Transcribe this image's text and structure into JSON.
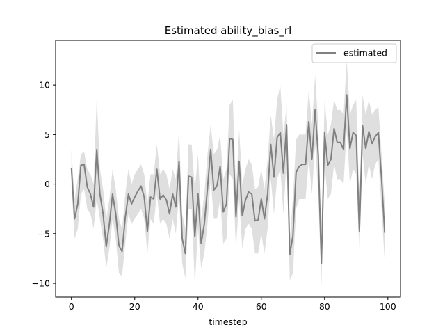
{
  "chart_data": {
    "type": "line",
    "title": "Estimated ability_bias_rl",
    "xlabel": "timestep",
    "ylabel": "",
    "xlim": [
      -5,
      104
    ],
    "ylim": [
      -11.4,
      14.5
    ],
    "xticks": [
      0,
      20,
      40,
      60,
      80,
      100
    ],
    "yticks": [
      -10,
      -5,
      0,
      5,
      10
    ],
    "ytick_labels": [
      "−10",
      "−5",
      "0",
      "5",
      "10"
    ],
    "grid": false,
    "legend": {
      "position": "top-right",
      "entries": [
        "estimated"
      ]
    },
    "colors": {
      "line": "#808080",
      "band": "#d9d9d9"
    },
    "series": [
      {
        "name": "estimated",
        "x": [
          0,
          1,
          2,
          3,
          4,
          5,
          6,
          7,
          8,
          9,
          10,
          11,
          12,
          13,
          14,
          15,
          16,
          17,
          18,
          19,
          20,
          21,
          22,
          23,
          24,
          25,
          26,
          27,
          28,
          29,
          30,
          31,
          32,
          33,
          34,
          35,
          36,
          37,
          38,
          39,
          40,
          41,
          42,
          43,
          44,
          45,
          46,
          47,
          48,
          49,
          50,
          51,
          52,
          53,
          54,
          55,
          56,
          57,
          58,
          59,
          60,
          61,
          62,
          63,
          64,
          65,
          66,
          67,
          68,
          69,
          70,
          71,
          72,
          73,
          74,
          75,
          76,
          77,
          78,
          79,
          80,
          81,
          82,
          83,
          84,
          85,
          86,
          87,
          88,
          89,
          90,
          91,
          92,
          93,
          94,
          95,
          96,
          97,
          98,
          99
        ],
        "values": [
          1.6,
          -3.5,
          -2.0,
          1.9,
          2.0,
          -0.3,
          -1.0,
          -2.3,
          3.5,
          -1.0,
          -3.0,
          -6.3,
          -4.0,
          -1.0,
          -3.0,
          -6.2,
          -6.8,
          -3.4,
          -1.0,
          -2.0,
          -1.3,
          -0.7,
          -0.2,
          -1.3,
          -4.8,
          -1.3,
          -1.5,
          1.5,
          -1.5,
          -1.1,
          -1.6,
          -3.0,
          -1.0,
          -2.3,
          2.3,
          -5.5,
          -7.0,
          0.8,
          0.7,
          -5.3,
          -1.0,
          -6.0,
          -4.0,
          -0.4,
          3.5,
          -0.6,
          -0.2,
          1.8,
          -2.8,
          -2.0,
          4.6,
          4.5,
          -3.3,
          2.3,
          -3.2,
          -1.6,
          -0.8,
          -1.0,
          -3.7,
          -3.6,
          -1.5,
          -3.5,
          -1.0,
          4.0,
          0.7,
          4.7,
          5.2,
          1.1,
          6.0,
          -7.1,
          -5.2,
          1.2,
          1.8,
          2.0,
          2.0,
          6.3,
          2.5,
          7.5,
          2.9,
          -8.0,
          5.2,
          1.9,
          2.5,
          5.6,
          4.2,
          4.2,
          3.5,
          9.0,
          3.6,
          5.2,
          4.9,
          -4.8,
          5.9,
          3.6,
          5.3,
          4.1,
          4.8,
          5.2,
          0.6,
          -4.9
        ],
        "lower": [
          0.0,
          -5.5,
          -4.5,
          -1.0,
          -0.5,
          -2.5,
          -3.0,
          -4.5,
          -1.5,
          -3.5,
          -5.5,
          -8.5,
          -6.5,
          -3.5,
          -5.5,
          -9.0,
          -9.3,
          -6.0,
          -3.0,
          -4.0,
          -3.5,
          -3.0,
          -2.5,
          -3.5,
          -7.0,
          -3.5,
          -4.0,
          -1.0,
          -4.0,
          -3.5,
          -4.0,
          -5.5,
          -3.5,
          -5.0,
          -1.0,
          -8.0,
          -9.5,
          -2.5,
          -2.5,
          -10.2,
          -4.5,
          -8.5,
          -7.0,
          -4.0,
          0.5,
          -3.5,
          -3.5,
          -1.5,
          -6.0,
          -5.5,
          1.0,
          0.5,
          -6.5,
          -1.5,
          -6.5,
          -4.5,
          -4.0,
          -4.5,
          -7.0,
          -7.0,
          -5.0,
          -7.0,
          -4.5,
          0.5,
          -3.0,
          0.5,
          1.5,
          -3.0,
          2.5,
          -9.7,
          -9.0,
          -2.5,
          -1.5,
          -1.5,
          -1.5,
          2.5,
          -1.0,
          4.0,
          -1.0,
          -10.2,
          2.0,
          -1.5,
          -1.0,
          2.0,
          0.5,
          0.5,
          0.0,
          5.5,
          0.0,
          1.5,
          1.0,
          -7.0,
          3.0,
          0.0,
          2.0,
          0.5,
          2.0,
          2.5,
          -2.5,
          -7.8
        ],
        "upper": [
          3.5,
          -1.5,
          0.5,
          3.0,
          3.3,
          1.5,
          1.0,
          0.0,
          8.8,
          1.5,
          -0.5,
          -3.5,
          -1.5,
          1.5,
          -0.5,
          -3.5,
          -4.5,
          -1.0,
          1.5,
          0.0,
          1.0,
          1.5,
          2.0,
          1.0,
          -2.0,
          1.0,
          1.0,
          4.0,
          1.0,
          1.5,
          1.0,
          -0.5,
          1.5,
          0.5,
          5.5,
          -3.0,
          -4.5,
          4.0,
          4.0,
          -0.5,
          3.0,
          -3.5,
          -1.0,
          3.0,
          6.0,
          3.0,
          3.5,
          5.0,
          0.5,
          1.5,
          8.0,
          8.5,
          -0.5,
          5.5,
          0.0,
          1.5,
          2.5,
          2.0,
          -0.5,
          -0.3,
          1.5,
          -0.5,
          2.5,
          7.0,
          4.5,
          8.5,
          10.0,
          5.0,
          8.0,
          -5.5,
          -1.5,
          4.5,
          5.0,
          5.0,
          5.0,
          9.5,
          6.0,
          11.0,
          6.0,
          -5.5,
          8.5,
          5.0,
          6.0,
          8.5,
          7.5,
          7.5,
          7.0,
          12.5,
          7.0,
          8.0,
          8.5,
          -2.0,
          9.0,
          7.0,
          8.5,
          7.0,
          7.5,
          7.8,
          3.0,
          -2.0
        ]
      }
    ]
  }
}
